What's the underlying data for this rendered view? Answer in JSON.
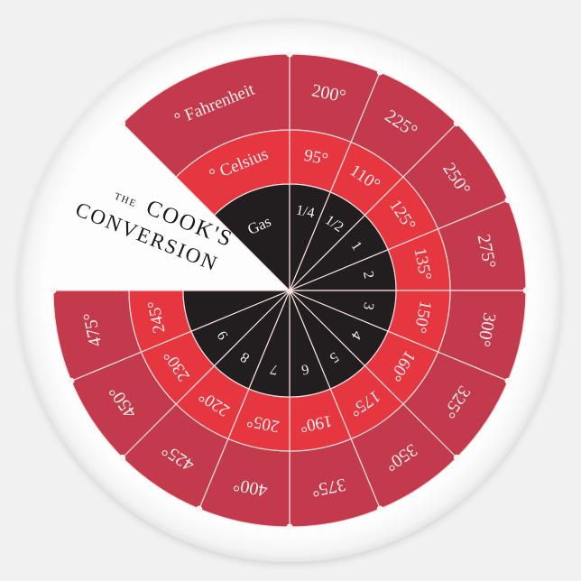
{
  "title": {
    "small": "THE",
    "line1": "COOK'S",
    "line2": "CONVERSION"
  },
  "scales": {
    "fahrenheit_label": "° Fahrenheit",
    "celsius_label": "° Celsius",
    "gas_label": "Gas"
  },
  "fahrenheit": [
    "200°",
    "225°",
    "250°",
    "275°",
    "300°",
    "325°",
    "350°",
    "375°",
    "400°",
    "425°",
    "450°",
    "475°"
  ],
  "celsius": [
    "95°",
    "110°",
    "125°",
    "135°",
    "150°",
    "160°",
    "175°",
    "190°",
    "205°",
    "220°",
    "230°",
    "245°"
  ],
  "gas": [
    "1/4",
    "1/2",
    "1",
    "2",
    "3",
    "4",
    "5",
    "6",
    "7",
    "8",
    "9",
    ""
  ],
  "colors": {
    "fahrenheit_ring": "#c23a4b",
    "celsius_ring": "#e6363f",
    "gas_ring": "#221e1f",
    "divider": "#f6dede",
    "disc": "#fbfbfb"
  }
}
